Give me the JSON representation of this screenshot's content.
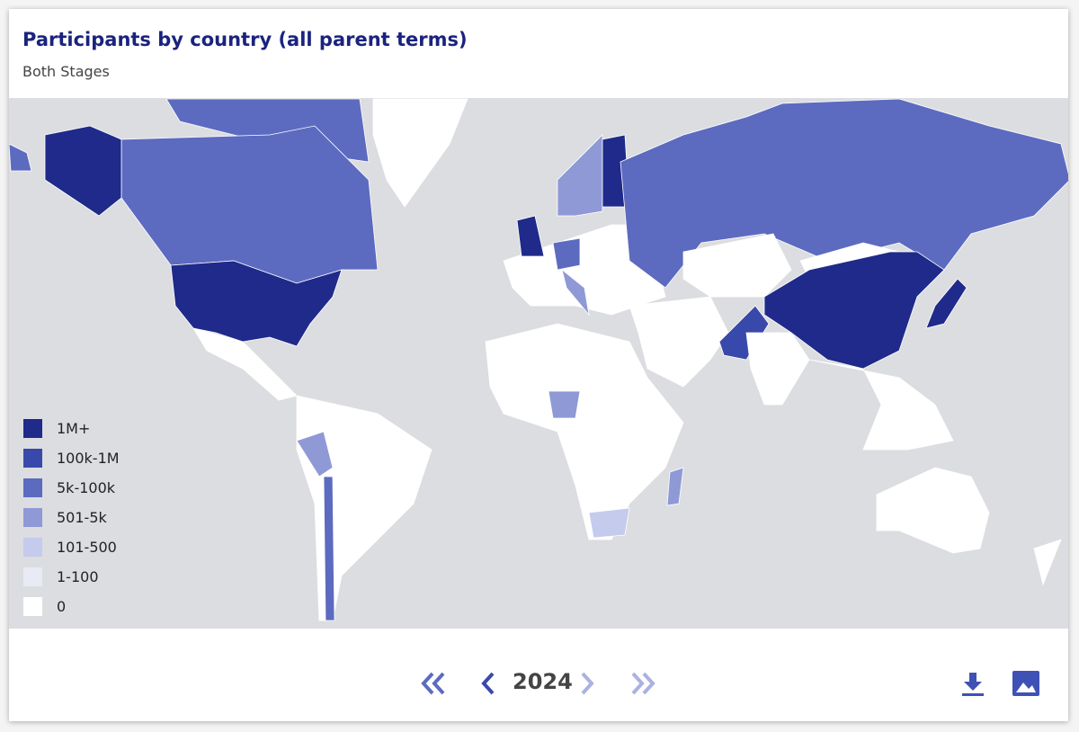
{
  "header": {
    "title": "Participants by country (all parent terms)",
    "subtitle": "Both Stages"
  },
  "legend": {
    "items": [
      {
        "label": "1M+",
        "color": "#1f2a8a"
      },
      {
        "label": "100k-1M",
        "color": "#3949ab"
      },
      {
        "label": "5k-100k",
        "color": "#5c6bc0"
      },
      {
        "label": "501-5k",
        "color": "#8e99d6"
      },
      {
        "label": "101-500",
        "color": "#c5cbec"
      },
      {
        "label": "1-100",
        "color": "#e8eaf6"
      },
      {
        "label": "0",
        "color": "#ffffff"
      }
    ]
  },
  "navigation": {
    "year": "2024"
  }
}
